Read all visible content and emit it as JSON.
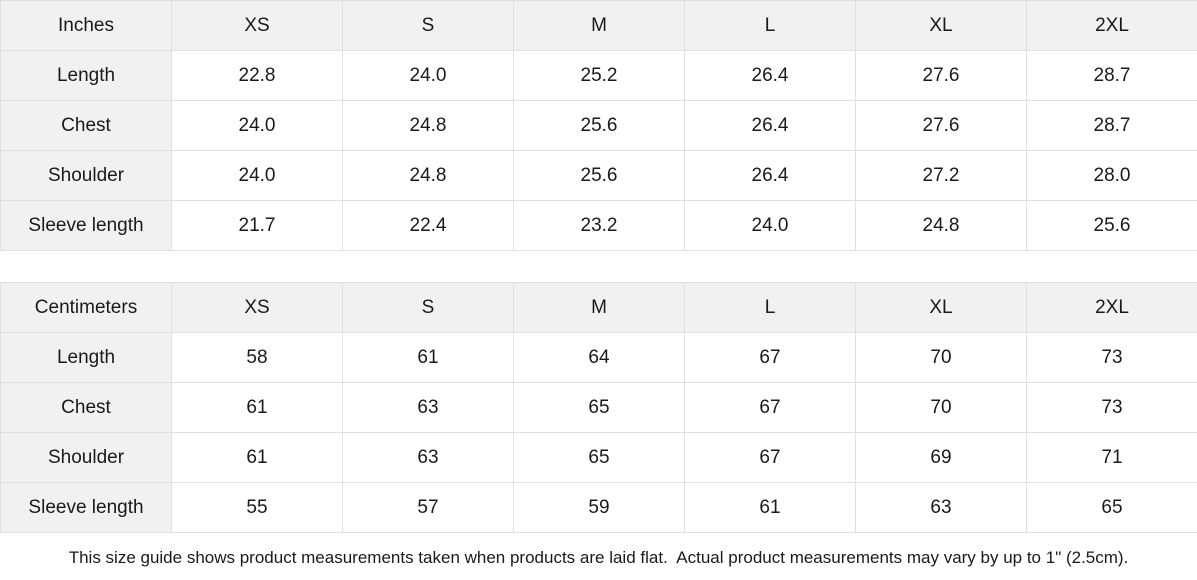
{
  "colors": {
    "header_background": "#f1f1f1",
    "label_column_background": "#f1f1f1",
    "border": "#e0e0e0",
    "text": "#1a1a1a",
    "page_background": "#ffffff"
  },
  "tables": [
    {
      "unit_label": "Inches",
      "size_headers": [
        "XS",
        "S",
        "M",
        "L",
        "XL",
        "2XL"
      ],
      "rows": [
        {
          "label": "Length",
          "values": [
            "22.8",
            "24.0",
            "25.2",
            "26.4",
            "27.6",
            "28.7"
          ]
        },
        {
          "label": "Chest",
          "values": [
            "24.0",
            "24.8",
            "25.6",
            "26.4",
            "27.6",
            "28.7"
          ]
        },
        {
          "label": "Shoulder",
          "values": [
            "24.0",
            "24.8",
            "25.6",
            "26.4",
            "27.2",
            "28.0"
          ]
        },
        {
          "label": "Sleeve length",
          "values": [
            "21.7",
            "22.4",
            "23.2",
            "24.0",
            "24.8",
            "25.6"
          ]
        }
      ]
    },
    {
      "unit_label": "Centimeters",
      "size_headers": [
        "XS",
        "S",
        "M",
        "L",
        "XL",
        "2XL"
      ],
      "rows": [
        {
          "label": "Length",
          "values": [
            "58",
            "61",
            "64",
            "67",
            "70",
            "73"
          ]
        },
        {
          "label": "Chest",
          "values": [
            "61",
            "63",
            "65",
            "67",
            "70",
            "73"
          ]
        },
        {
          "label": "Shoulder",
          "values": [
            "61",
            "63",
            "65",
            "67",
            "69",
            "71"
          ]
        },
        {
          "label": "Sleeve length",
          "values": [
            "55",
            "57",
            "59",
            "61",
            "63",
            "65"
          ]
        }
      ]
    }
  ],
  "footnote": "This size guide shows product measurements taken when products are laid flat.  Actual product measurements may vary by up to 1\" (2.5cm)."
}
